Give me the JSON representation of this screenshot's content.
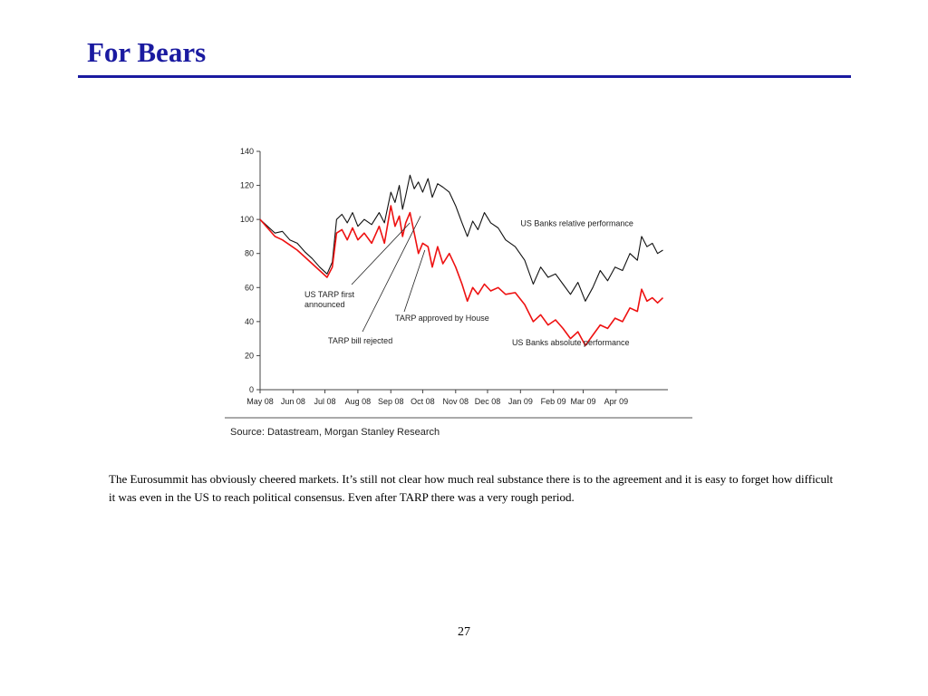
{
  "slide": {
    "title": "For Bears",
    "body": "The Eurosummit has obviously cheered markets. It’s still not clear how much real substance there is to the agreement and it is easy to forget how difficult it was even in the US to reach political consensus. Even  after TARP there was a very rough period.",
    "page_number": "27"
  },
  "colors": {
    "title": "#1a1aa0",
    "relative_series": "#111111",
    "absolute_series": "#ee1111"
  },
  "chart_data": {
    "type": "line",
    "title": "",
    "xlabel": "",
    "ylabel": "",
    "source": "Source: Datastream, Morgan Stanley Research",
    "x_tick_labels": [
      "May 08",
      "Jun 08",
      "Jul 08",
      "Aug 08",
      "Sep 08",
      "Oct 08",
      "Nov 08",
      "Dec 08",
      "Jan 09",
      "Feb 09",
      "Mar 09",
      "Apr 09"
    ],
    "y_ticks": [
      0,
      20,
      40,
      60,
      80,
      100,
      120,
      140
    ],
    "ylim": [
      0,
      140
    ],
    "xlim": [
      "2008-05-01",
      "2009-05-18"
    ],
    "grid": false,
    "series": [
      {
        "name": "US Banks relative performance",
        "color": "#111111",
        "points": [
          [
            "2008-05-01",
            100
          ],
          [
            "2008-05-08",
            96
          ],
          [
            "2008-05-15",
            92
          ],
          [
            "2008-05-22",
            93
          ],
          [
            "2008-05-29",
            88
          ],
          [
            "2008-06-05",
            86
          ],
          [
            "2008-06-12",
            81
          ],
          [
            "2008-06-19",
            77
          ],
          [
            "2008-06-26",
            72
          ],
          [
            "2008-07-03",
            68
          ],
          [
            "2008-07-08",
            75
          ],
          [
            "2008-07-12",
            100
          ],
          [
            "2008-07-17",
            103
          ],
          [
            "2008-07-22",
            98
          ],
          [
            "2008-07-27",
            104
          ],
          [
            "2008-08-01",
            96
          ],
          [
            "2008-08-07",
            100
          ],
          [
            "2008-08-14",
            97
          ],
          [
            "2008-08-21",
            104
          ],
          [
            "2008-08-26",
            98
          ],
          [
            "2008-09-01",
            116
          ],
          [
            "2008-09-05",
            110
          ],
          [
            "2008-09-09",
            120
          ],
          [
            "2008-09-12",
            106
          ],
          [
            "2008-09-15",
            114
          ],
          [
            "2008-09-19",
            126
          ],
          [
            "2008-09-23",
            118
          ],
          [
            "2008-09-27",
            122
          ],
          [
            "2008-10-01",
            116
          ],
          [
            "2008-10-06",
            124
          ],
          [
            "2008-10-10",
            113
          ],
          [
            "2008-10-15",
            121
          ],
          [
            "2008-10-20",
            119
          ],
          [
            "2008-10-26",
            116
          ],
          [
            "2008-11-01",
            108
          ],
          [
            "2008-11-07",
            98
          ],
          [
            "2008-11-12",
            90
          ],
          [
            "2008-11-17",
            99
          ],
          [
            "2008-11-22",
            94
          ],
          [
            "2008-11-28",
            104
          ],
          [
            "2008-12-04",
            98
          ],
          [
            "2008-12-11",
            95
          ],
          [
            "2008-12-18",
            88
          ],
          [
            "2008-12-27",
            84
          ],
          [
            "2009-01-05",
            76
          ],
          [
            "2009-01-13",
            62
          ],
          [
            "2009-01-20",
            72
          ],
          [
            "2009-01-27",
            66
          ],
          [
            "2009-02-03",
            68
          ],
          [
            "2009-02-10",
            62
          ],
          [
            "2009-02-17",
            56
          ],
          [
            "2009-02-24",
            63
          ],
          [
            "2009-03-03",
            52
          ],
          [
            "2009-03-10",
            60
          ],
          [
            "2009-03-17",
            70
          ],
          [
            "2009-03-24",
            64
          ],
          [
            "2009-03-31",
            72
          ],
          [
            "2009-04-07",
            70
          ],
          [
            "2009-04-14",
            80
          ],
          [
            "2009-04-21",
            76
          ],
          [
            "2009-04-25",
            90
          ],
          [
            "2009-04-30",
            84
          ],
          [
            "2009-05-05",
            86
          ],
          [
            "2009-05-10",
            80
          ],
          [
            "2009-05-15",
            82
          ]
        ]
      },
      {
        "name": "US Banks absolute performance",
        "color": "#ee1111",
        "points": [
          [
            "2008-05-01",
            100
          ],
          [
            "2008-05-08",
            95
          ],
          [
            "2008-05-15",
            90
          ],
          [
            "2008-05-22",
            88
          ],
          [
            "2008-05-29",
            85
          ],
          [
            "2008-06-05",
            82
          ],
          [
            "2008-06-12",
            78
          ],
          [
            "2008-06-19",
            74
          ],
          [
            "2008-06-26",
            70
          ],
          [
            "2008-07-03",
            66
          ],
          [
            "2008-07-08",
            72
          ],
          [
            "2008-07-12",
            92
          ],
          [
            "2008-07-17",
            94
          ],
          [
            "2008-07-22",
            88
          ],
          [
            "2008-07-27",
            95
          ],
          [
            "2008-08-01",
            88
          ],
          [
            "2008-08-07",
            92
          ],
          [
            "2008-08-14",
            86
          ],
          [
            "2008-08-21",
            96
          ],
          [
            "2008-08-26",
            86
          ],
          [
            "2008-09-01",
            108
          ],
          [
            "2008-09-05",
            96
          ],
          [
            "2008-09-09",
            102
          ],
          [
            "2008-09-12",
            90
          ],
          [
            "2008-09-15",
            98
          ],
          [
            "2008-09-19",
            104
          ],
          [
            "2008-09-23",
            92
          ],
          [
            "2008-09-27",
            80
          ],
          [
            "2008-10-01",
            86
          ],
          [
            "2008-10-06",
            84
          ],
          [
            "2008-10-10",
            72
          ],
          [
            "2008-10-15",
            84
          ],
          [
            "2008-10-20",
            74
          ],
          [
            "2008-10-26",
            80
          ],
          [
            "2008-11-01",
            72
          ],
          [
            "2008-11-07",
            62
          ],
          [
            "2008-11-12",
            52
          ],
          [
            "2008-11-17",
            60
          ],
          [
            "2008-11-22",
            56
          ],
          [
            "2008-11-28",
            62
          ],
          [
            "2008-12-04",
            58
          ],
          [
            "2008-12-11",
            60
          ],
          [
            "2008-12-18",
            56
          ],
          [
            "2008-12-27",
            57
          ],
          [
            "2009-01-05",
            50
          ],
          [
            "2009-01-13",
            40
          ],
          [
            "2009-01-20",
            44
          ],
          [
            "2009-01-27",
            38
          ],
          [
            "2009-02-03",
            41
          ],
          [
            "2009-02-10",
            36
          ],
          [
            "2009-02-17",
            30
          ],
          [
            "2009-02-24",
            34
          ],
          [
            "2009-03-03",
            26
          ],
          [
            "2009-03-10",
            32
          ],
          [
            "2009-03-17",
            38
          ],
          [
            "2009-03-24",
            36
          ],
          [
            "2009-03-31",
            42
          ],
          [
            "2009-04-07",
            40
          ],
          [
            "2009-04-14",
            48
          ],
          [
            "2009-04-21",
            46
          ],
          [
            "2009-04-25",
            59
          ],
          [
            "2009-04-30",
            52
          ],
          [
            "2009-05-05",
            54
          ],
          [
            "2009-05-10",
            51
          ],
          [
            "2009-05-15",
            54
          ]
        ]
      }
    ],
    "annotations": [
      {
        "id": "tarp-first",
        "lines": [
          "US TARP first",
          "announced"
        ],
        "date": "2008-09-19",
        "value": 98
      },
      {
        "id": "tarp-rejected",
        "lines": [
          "TARP bill rejected"
        ],
        "date": "2008-09-29",
        "value": 102
      },
      {
        "id": "tarp-approved",
        "lines": [
          "TARP approved by House"
        ],
        "date": "2008-10-03",
        "value": 82
      }
    ],
    "series_labels": [
      {
        "text": "US Banks relative performance",
        "date": "2009-01-01",
        "value": 96
      },
      {
        "text": "US Banks absolute performance",
        "date": "2008-12-24",
        "value": 26
      }
    ]
  }
}
